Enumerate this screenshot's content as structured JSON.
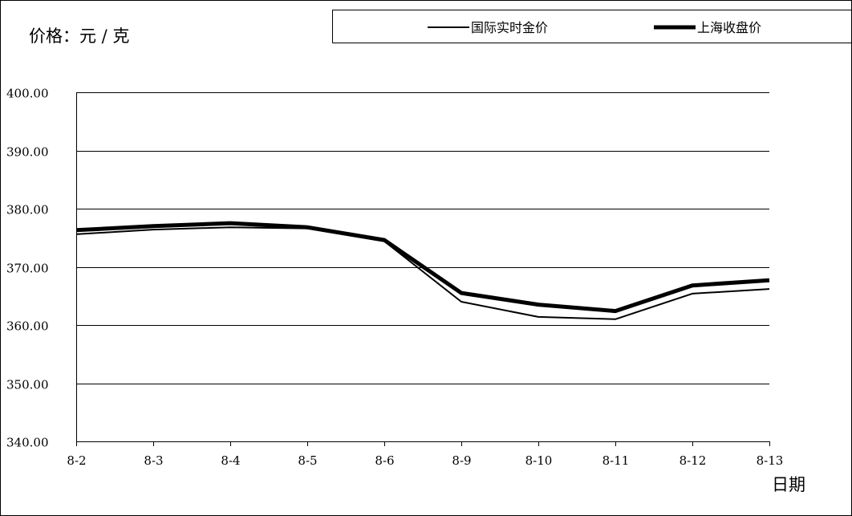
{
  "chart_data": {
    "type": "line",
    "title": "",
    "ylabel": "价格：元 / 克",
    "xlabel": "日期",
    "categories": [
      "8-2",
      "8-3",
      "8-4",
      "8-5",
      "8-6",
      "8-9",
      "8-10",
      "8-11",
      "8-12",
      "8-13"
    ],
    "ylim": [
      340,
      400
    ],
    "yticks": [
      "340.00",
      "350.00",
      "360.00",
      "370.00",
      "380.00",
      "390.00",
      "400.00"
    ],
    "grid": true,
    "legend_position": "top",
    "series": [
      {
        "name": "国际实时金价",
        "values": [
          375.6,
          376.4,
          376.8,
          376.6,
          374.4,
          364.0,
          361.4,
          361.0,
          365.4,
          366.2
        ],
        "color": "#000000",
        "style": "thin"
      },
      {
        "name": "上海收盘价",
        "values": [
          376.3,
          377.0,
          377.5,
          376.8,
          374.6,
          365.5,
          363.5,
          362.4,
          366.8,
          367.7
        ],
        "color": "#000000",
        "style": "thick"
      }
    ]
  }
}
